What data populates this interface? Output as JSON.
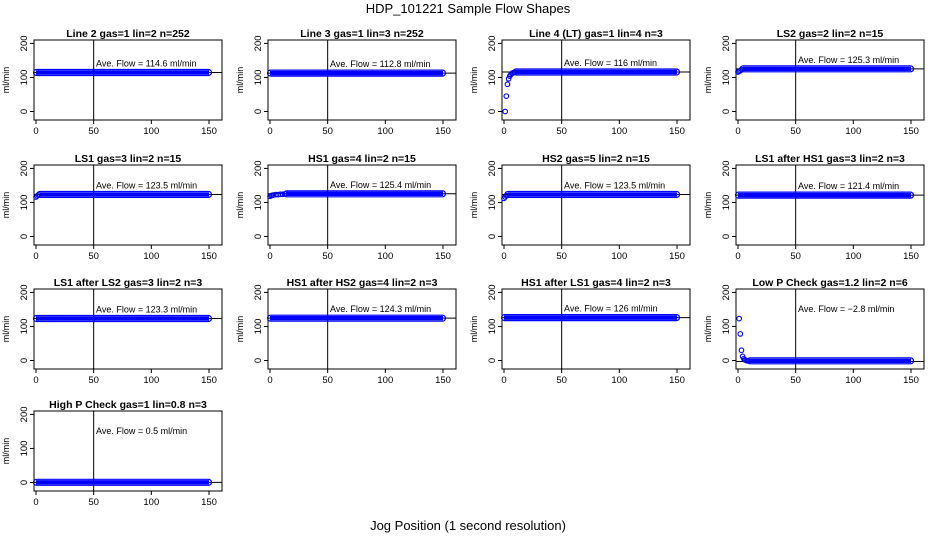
{
  "figure": {
    "title": "HDP_101221  Sample Flow Shapes",
    "x_caption": "Jog Position (1 second resolution)"
  },
  "colors": {
    "points": "#0000ff",
    "lines": "#000000"
  },
  "chart_data": [
    {
      "type": "scatter",
      "title": "Line 2 gas=1 lin=2 n=252",
      "ylabel": "ml/min",
      "annotation": "Ave. Flow =  114.6  ml/min",
      "mean": 114.6,
      "vline_x": 50,
      "xlim": [
        0,
        150
      ],
      "ylim": [
        -25,
        210
      ],
      "xticks": [
        0,
        50,
        100,
        150
      ],
      "yticks": [
        0,
        100,
        200
      ],
      "shape": {
        "kind": "flat",
        "x_start": 0,
        "x_end": 150,
        "level": 114.6
      }
    },
    {
      "type": "scatter",
      "title": "Line 3 gas=1 lin=3 n=252",
      "ylabel": "ml/min",
      "annotation": "Ave. Flow =  112.8  ml/min",
      "mean": 112.8,
      "vline_x": 50,
      "xlim": [
        0,
        150
      ],
      "ylim": [
        -25,
        210
      ],
      "xticks": [
        0,
        50,
        100,
        150
      ],
      "yticks": [
        0,
        100,
        200
      ],
      "shape": {
        "kind": "flat",
        "x_start": 0,
        "x_end": 150,
        "level": 112.8
      }
    },
    {
      "type": "scatter",
      "title": "Line 4 (LT) gas=1 lin=4 n=3",
      "ylabel": "ml/min",
      "annotation": "Ave. Flow =  116  ml/min",
      "mean": 116,
      "vline_x": 50,
      "xlim": [
        0,
        150
      ],
      "ylim": [
        -25,
        210
      ],
      "xticks": [
        0,
        50,
        100,
        150
      ],
      "yticks": [
        0,
        100,
        200
      ],
      "shape": {
        "kind": "flat",
        "x_start": 10,
        "x_end": 150,
        "level": 116
      },
      "points": [
        [
          1,
          0
        ],
        [
          2,
          45
        ],
        [
          3,
          80
        ],
        [
          4,
          96
        ],
        [
          5,
          104
        ],
        [
          6,
          109
        ],
        [
          7,
          112
        ],
        [
          8,
          114
        ],
        [
          9,
          115
        ]
      ]
    },
    {
      "type": "scatter",
      "title": "LS2 gas=2 lin=2 n=15",
      "ylabel": "ml/min",
      "annotation": "Ave. Flow =  125.3  ml/min",
      "mean": 125.3,
      "vline_x": 50,
      "xlim": [
        0,
        150
      ],
      "ylim": [
        -25,
        210
      ],
      "xticks": [
        0,
        50,
        100,
        150
      ],
      "yticks": [
        0,
        100,
        200
      ],
      "shape": {
        "kind": "flat",
        "x_start": 4,
        "x_end": 150,
        "level": 125.3
      },
      "points": [
        [
          0,
          116
        ],
        [
          1,
          118
        ],
        [
          2,
          120
        ],
        [
          3,
          123
        ]
      ]
    },
    {
      "type": "scatter",
      "title": "LS1 gas=3 lin=2 n=15",
      "ylabel": "ml/min",
      "annotation": "Ave. Flow =  123.5  ml/min",
      "mean": 123.5,
      "vline_x": 50,
      "xlim": [
        0,
        150
      ],
      "ylim": [
        -25,
        210
      ],
      "xticks": [
        0,
        50,
        100,
        150
      ],
      "yticks": [
        0,
        100,
        200
      ],
      "shape": {
        "kind": "flat",
        "x_start": 3,
        "x_end": 150,
        "level": 123.5
      },
      "points": [
        [
          0,
          116
        ],
        [
          1,
          119
        ],
        [
          2,
          122
        ]
      ]
    },
    {
      "type": "scatter",
      "title": "HS1 gas=4 lin=2 n=15",
      "ylabel": "ml/min",
      "annotation": "Ave. Flow =  125.4  ml/min",
      "mean": 125.4,
      "vline_x": 50,
      "xlim": [
        0,
        150
      ],
      "ylim": [
        -25,
        210
      ],
      "xticks": [
        0,
        50,
        100,
        150
      ],
      "yticks": [
        0,
        100,
        200
      ],
      "shape": {
        "kind": "flat",
        "x_start": 14,
        "x_end": 150,
        "level": 125.4
      },
      "points": [
        [
          0,
          118
        ],
        [
          1,
          120
        ],
        [
          2,
          121
        ],
        [
          3,
          122
        ],
        [
          5,
          123
        ],
        [
          7,
          123
        ],
        [
          9,
          124
        ],
        [
          11,
          124
        ],
        [
          13,
          125
        ]
      ]
    },
    {
      "type": "scatter",
      "title": "HS2 gas=5 lin=2 n=15",
      "ylabel": "ml/min",
      "annotation": "Ave. Flow =  123.5  ml/min",
      "mean": 123.5,
      "vline_x": 50,
      "xlim": [
        0,
        150
      ],
      "ylim": [
        -25,
        210
      ],
      "xticks": [
        0,
        50,
        100,
        150
      ],
      "yticks": [
        0,
        100,
        200
      ],
      "shape": {
        "kind": "flat",
        "x_start": 3,
        "x_end": 150,
        "level": 123.5
      },
      "points": [
        [
          0,
          112
        ],
        [
          1,
          116
        ],
        [
          2,
          120
        ]
      ]
    },
    {
      "type": "scatter",
      "title": "LS1 after HS1 gas=3 lin=2 n=3",
      "ylabel": "ml/min",
      "annotation": "Ave. Flow =  121.4  ml/min",
      "mean": 121.4,
      "vline_x": 50,
      "xlim": [
        0,
        150
      ],
      "ylim": [
        -25,
        210
      ],
      "xticks": [
        0,
        50,
        100,
        150
      ],
      "yticks": [
        0,
        100,
        200
      ],
      "shape": {
        "kind": "flat",
        "x_start": 0,
        "x_end": 150,
        "level": 121.4
      }
    },
    {
      "type": "scatter",
      "title": "LS1 after LS2 gas=3 lin=2 n=3",
      "ylabel": "ml/min",
      "annotation": "Ave. Flow =  123.3  ml/min",
      "mean": 123.3,
      "vline_x": 50,
      "xlim": [
        0,
        150
      ],
      "ylim": [
        -25,
        210
      ],
      "xticks": [
        0,
        50,
        100,
        150
      ],
      "yticks": [
        0,
        100,
        200
      ],
      "shape": {
        "kind": "flat",
        "x_start": 0,
        "x_end": 150,
        "level": 123.3
      }
    },
    {
      "type": "scatter",
      "title": "HS1 after HS2 gas=4 lin=2 n=3",
      "ylabel": "ml/min",
      "annotation": "Ave. Flow =  124.3  ml/min",
      "mean": 124.3,
      "vline_x": 50,
      "xlim": [
        0,
        150
      ],
      "ylim": [
        -25,
        210
      ],
      "xticks": [
        0,
        50,
        100,
        150
      ],
      "yticks": [
        0,
        100,
        200
      ],
      "shape": {
        "kind": "flat",
        "x_start": 0,
        "x_end": 150,
        "level": 124.3
      }
    },
    {
      "type": "scatter",
      "title": "HS1 after LS1 gas=4 lin=2 n=3",
      "ylabel": "ml/min",
      "annotation": "Ave. Flow =  126  ml/min",
      "mean": 126,
      "vline_x": 50,
      "xlim": [
        0,
        150
      ],
      "ylim": [
        -25,
        210
      ],
      "xticks": [
        0,
        50,
        100,
        150
      ],
      "yticks": [
        0,
        100,
        200
      ],
      "shape": {
        "kind": "flat",
        "x_start": 0,
        "x_end": 150,
        "level": 126
      }
    },
    {
      "type": "scatter",
      "title": "Low P Check gas=1.2 lin=2 n=6",
      "ylabel": "ml/min",
      "annotation": "Ave. Flow =  −2.8  ml/min",
      "mean": -2.8,
      "vline_x": 50,
      "xlim": [
        0,
        150
      ],
      "ylim": [
        -25,
        210
      ],
      "xticks": [
        0,
        50,
        100,
        150
      ],
      "yticks": [
        0,
        100,
        200
      ],
      "shape": {
        "kind": "flat",
        "x_start": 10,
        "x_end": 150,
        "level": -1
      },
      "points": [
        [
          1,
          123
        ],
        [
          2,
          78
        ],
        [
          3,
          30
        ],
        [
          4,
          12
        ],
        [
          5,
          5
        ],
        [
          6,
          2
        ],
        [
          7,
          0
        ],
        [
          8,
          -1
        ],
        [
          9,
          -1
        ]
      ]
    },
    {
      "type": "scatter",
      "title": "High P Check gas=1 lin=0.8 n=3",
      "ylabel": "ml/min",
      "annotation": "Ave. Flow =  0.5  ml/min",
      "mean": 0.5,
      "vline_x": 50,
      "xlim": [
        0,
        150
      ],
      "ylim": [
        -25,
        210
      ],
      "xticks": [
        0,
        50,
        100,
        150
      ],
      "yticks": [
        0,
        100,
        200
      ],
      "shape": {
        "kind": "flat",
        "x_start": 0,
        "x_end": 150,
        "level": 0.5
      }
    }
  ]
}
